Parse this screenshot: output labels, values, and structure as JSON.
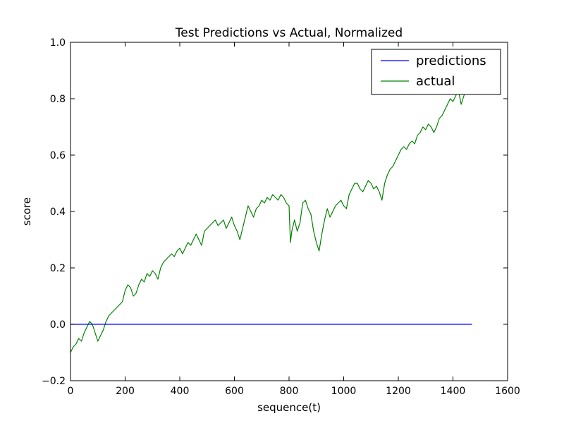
{
  "chart_data": {
    "type": "line",
    "title": "Test Predictions vs Actual, Normalized",
    "xlabel": "sequence(t)",
    "ylabel": "score",
    "xlim": [
      0,
      1600
    ],
    "ylim": [
      -0.2,
      1.0
    ],
    "xticks": [
      0,
      200,
      400,
      600,
      800,
      1000,
      1200,
      1400,
      1600
    ],
    "yticks": [
      -0.2,
      0.0,
      0.2,
      0.4,
      0.6,
      0.8,
      1.0
    ],
    "xtick_labels": [
      "0",
      "200",
      "400",
      "600",
      "800",
      "1000",
      "1200",
      "1400",
      "1600"
    ],
    "ytick_labels": [
      "−0.2",
      "0.0",
      "0.2",
      "0.4",
      "0.6",
      "0.8",
      "1.0"
    ],
    "grid": false,
    "legend_position": "top-right",
    "series": [
      {
        "name": "predictions",
        "color": "#0000ff",
        "x": [
          0,
          1470
        ],
        "y": [
          0.0,
          0.0
        ]
      },
      {
        "name": "actual",
        "color": "#008000",
        "x": [
          0,
          10,
          20,
          30,
          40,
          50,
          60,
          70,
          80,
          90,
          100,
          110,
          120,
          130,
          140,
          150,
          160,
          170,
          180,
          190,
          200,
          210,
          220,
          230,
          240,
          250,
          260,
          270,
          280,
          290,
          300,
          310,
          320,
          330,
          340,
          350,
          360,
          370,
          380,
          390,
          400,
          410,
          420,
          430,
          440,
          450,
          460,
          470,
          480,
          490,
          500,
          510,
          520,
          530,
          540,
          550,
          560,
          570,
          580,
          590,
          600,
          610,
          620,
          630,
          640,
          650,
          660,
          670,
          680,
          690,
          700,
          710,
          720,
          730,
          740,
          750,
          760,
          770,
          780,
          790,
          800,
          805,
          810,
          820,
          830,
          840,
          850,
          860,
          870,
          880,
          890,
          900,
          910,
          920,
          930,
          940,
          950,
          960,
          970,
          980,
          990,
          1000,
          1010,
          1020,
          1030,
          1040,
          1050,
          1060,
          1070,
          1080,
          1090,
          1100,
          1110,
          1120,
          1130,
          1140,
          1150,
          1160,
          1170,
          1180,
          1190,
          1200,
          1210,
          1220,
          1230,
          1240,
          1250,
          1260,
          1270,
          1280,
          1290,
          1300,
          1310,
          1320,
          1330,
          1340,
          1350,
          1360,
          1370,
          1380,
          1390,
          1400,
          1410,
          1420,
          1430,
          1440,
          1450,
          1460,
          1470
        ],
        "y": [
          -0.1,
          -0.08,
          -0.07,
          -0.05,
          -0.06,
          -0.03,
          -0.01,
          0.01,
          0.0,
          -0.03,
          -0.06,
          -0.04,
          -0.02,
          0.01,
          0.03,
          0.04,
          0.05,
          0.06,
          0.07,
          0.08,
          0.12,
          0.14,
          0.13,
          0.1,
          0.11,
          0.14,
          0.16,
          0.15,
          0.18,
          0.17,
          0.19,
          0.18,
          0.16,
          0.2,
          0.22,
          0.23,
          0.24,
          0.25,
          0.24,
          0.26,
          0.27,
          0.25,
          0.27,
          0.29,
          0.28,
          0.3,
          0.32,
          0.3,
          0.28,
          0.33,
          0.34,
          0.35,
          0.36,
          0.37,
          0.35,
          0.36,
          0.37,
          0.34,
          0.36,
          0.38,
          0.35,
          0.33,
          0.3,
          0.34,
          0.38,
          0.42,
          0.4,
          0.38,
          0.41,
          0.42,
          0.44,
          0.43,
          0.45,
          0.44,
          0.46,
          0.45,
          0.44,
          0.46,
          0.45,
          0.43,
          0.42,
          0.29,
          0.33,
          0.37,
          0.33,
          0.36,
          0.43,
          0.44,
          0.41,
          0.39,
          0.33,
          0.29,
          0.26,
          0.32,
          0.37,
          0.41,
          0.38,
          0.4,
          0.42,
          0.43,
          0.44,
          0.42,
          0.41,
          0.46,
          0.48,
          0.5,
          0.5,
          0.48,
          0.47,
          0.49,
          0.51,
          0.5,
          0.48,
          0.49,
          0.47,
          0.44,
          0.5,
          0.53,
          0.55,
          0.56,
          0.58,
          0.6,
          0.62,
          0.63,
          0.62,
          0.64,
          0.65,
          0.64,
          0.67,
          0.68,
          0.7,
          0.69,
          0.71,
          0.7,
          0.68,
          0.7,
          0.73,
          0.74,
          0.76,
          0.78,
          0.8,
          0.79,
          0.81,
          0.83,
          0.78,
          0.81,
          0.84,
          0.82,
          0.86
        ]
      }
    ]
  }
}
